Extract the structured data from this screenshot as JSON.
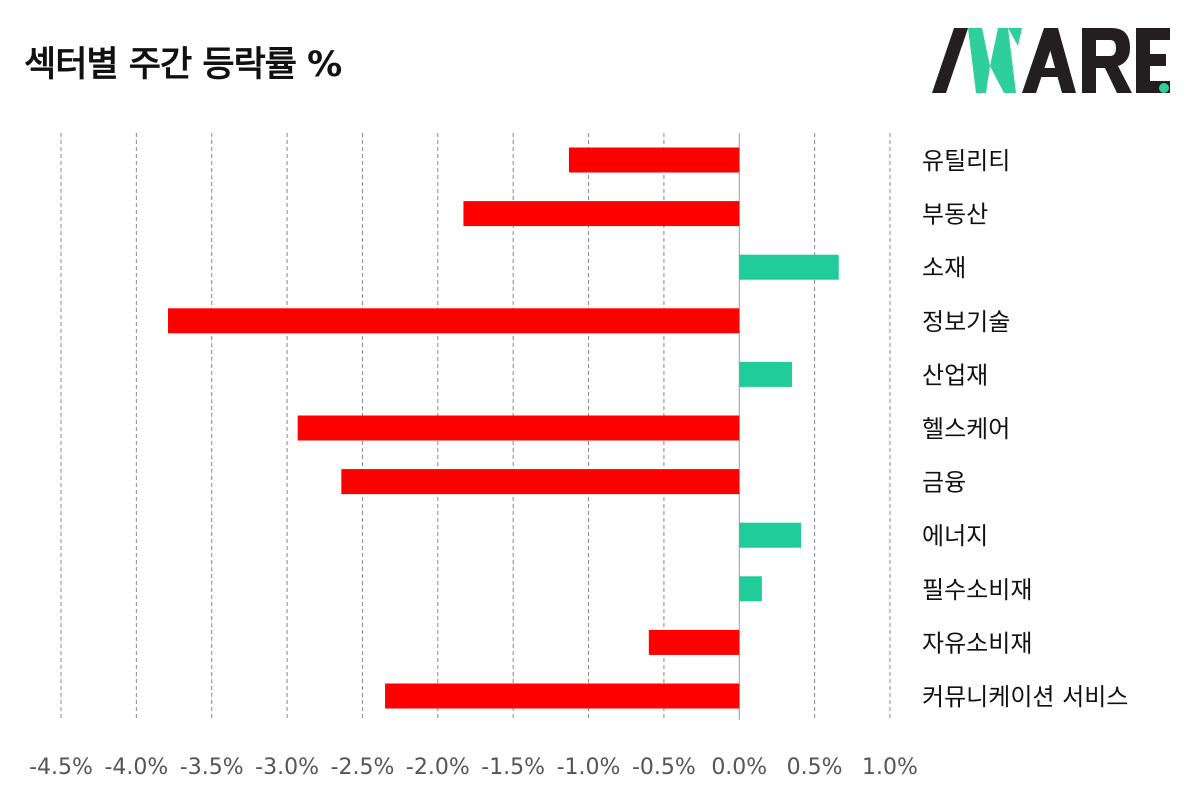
{
  "title": "섹터별 주간 등락률 %",
  "logo": {
    "text": "AWARE",
    "dark_color": "#231f20",
    "accent_color": "#2ecf9a"
  },
  "colors": {
    "negative": "#ff0000",
    "positive": "#20cc9a",
    "grid": "#888888",
    "zero_line": "#999999"
  },
  "chart_data": {
    "type": "bar",
    "orientation": "horizontal",
    "title": "섹터별 주간 등락률 %",
    "xlabel": "",
    "ylabel": "",
    "xlim": [
      -4.5,
      1.0
    ],
    "tick_step": 0.5,
    "tick_labels": [
      "-4.5%",
      "-4.0%",
      "-3.5%",
      "-3.0%",
      "-2.5%",
      "-2.0%",
      "-1.5%",
      "-1.0%",
      "-0.5%",
      "0.0%",
      "0.5%",
      "1.0%"
    ],
    "grid": true,
    "legend": "none",
    "categories": [
      "유틸리티",
      "부동산",
      "소재",
      "정보기술",
      "산업재",
      "헬스케어",
      "금융",
      "에너지",
      "필수소비재",
      "자유소비재",
      "커뮤니케이션 서비스"
    ],
    "values": [
      -1.13,
      -1.83,
      0.66,
      -3.79,
      0.35,
      -2.93,
      -2.64,
      0.41,
      0.15,
      -0.6,
      -2.35
    ]
  }
}
